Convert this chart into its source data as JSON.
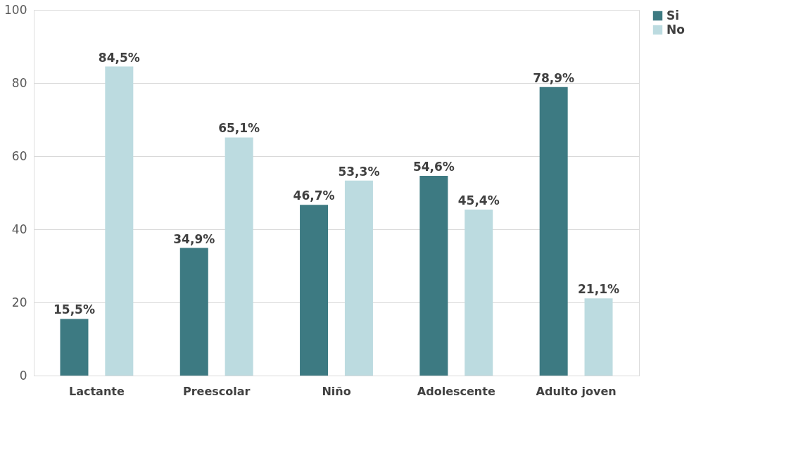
{
  "chart_data": {
    "type": "bar",
    "categories": [
      "Lactante",
      "Preescolar",
      "Niño",
      "Adolescente",
      "Adulto joven"
    ],
    "series": [
      {
        "name": "Si",
        "color": "#3d7a82",
        "values": [
          15.5,
          34.9,
          46.7,
          54.6,
          78.9
        ],
        "value_labels": [
          "15,5%",
          "34,9%",
          "46,7%",
          "54,6%",
          "78,9%"
        ]
      },
      {
        "name": "No",
        "color": "#bcdbe0",
        "values": [
          84.5,
          65.1,
          53.3,
          45.4,
          21.1
        ],
        "value_labels": [
          "84,5%",
          "65,1%",
          "53,3%",
          "45,4%",
          "21,1%"
        ]
      }
    ],
    "ylim": [
      0,
      100
    ],
    "yticks": [
      0,
      20,
      40,
      60,
      80,
      100
    ],
    "grid": "y",
    "legend": "right"
  }
}
